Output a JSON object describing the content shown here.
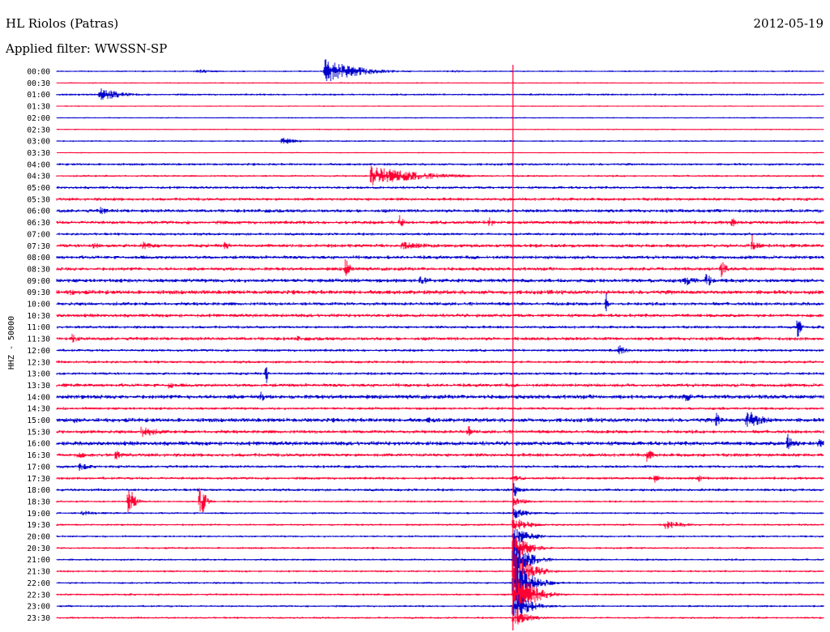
{
  "header": {
    "station": "HL Riolos (Patras)",
    "date": "2012-05-19",
    "filter": "Applied filter: WWSSN-SP"
  },
  "chart_data": {
    "type": "helicorder",
    "title": "HL Riolos (Patras)",
    "date": "2012-05-19",
    "filter": "WWSSN-SP",
    "ylabel": "HHZ - 50000",
    "row_minutes": 30,
    "trace_colors": [
      "#0000cc",
      "#ff0033"
    ],
    "tick_labels": [
      "00:00",
      "00:30",
      "01:00",
      "01:30",
      "02:00",
      "02:30",
      "03:00",
      "03:30",
      "04:00",
      "04:30",
      "05:00",
      "05:30",
      "06:00",
      "06:30",
      "07:00",
      "07:30",
      "08:00",
      "08:30",
      "09:00",
      "09:30",
      "10:00",
      "10:30",
      "11:00",
      "11:30",
      "12:00",
      "12:30",
      "13:00",
      "13:30",
      "14:00",
      "14:30",
      "15:00",
      "15:30",
      "16:00",
      "16:30",
      "17:00",
      "17:30",
      "18:00",
      "18:30",
      "19:00",
      "19:30",
      "20:00",
      "20:30",
      "21:00",
      "21:30",
      "22:00",
      "22:30",
      "23:00",
      "23:30"
    ],
    "row_noise_amplitude": [
      1.2,
      1,
      1.5,
      1,
      1,
      1,
      1.2,
      1,
      1.8,
      1.5,
      2,
      2.2,
      2.5,
      2.5,
      2,
      2.5,
      2.5,
      2.5,
      2.8,
      3,
      2.5,
      2.5,
      2,
      2.5,
      2,
      2,
      2,
      2.5,
      3,
      2,
      3,
      2.5,
      3,
      2.5,
      2,
      2,
      2,
      1.5,
      1.5,
      1.5,
      1.5,
      1.5,
      1.5,
      1.5,
      1.5,
      1.5,
      1.5,
      1.5
    ],
    "events": [
      {
        "row": 0,
        "minute": 10.5,
        "amp": 16,
        "dur": 1.2
      },
      {
        "row": 0,
        "minute": 5.5,
        "amp": 3,
        "dur": 0.8
      },
      {
        "row": 0,
        "minute": 15.5,
        "amp": 2,
        "dur": 0.8
      },
      {
        "row": 2,
        "minute": 1.7,
        "amp": 9,
        "dur": 0.8
      },
      {
        "row": 6,
        "minute": 8.8,
        "amp": 5,
        "dur": 0.6
      },
      {
        "row": 9,
        "minute": 12.3,
        "amp": 13,
        "dur": 1.8
      },
      {
        "row": 12,
        "minute": 1.7,
        "amp": 5,
        "dur": 0.5
      },
      {
        "row": 13,
        "minute": 13.4,
        "amp": 10,
        "dur": 0.2
      },
      {
        "row": 13,
        "minute": 16.9,
        "amp": 8,
        "dur": 0.2
      },
      {
        "row": 13,
        "minute": 26.4,
        "amp": 8,
        "dur": 0.2
      },
      {
        "row": 15,
        "minute": 1.4,
        "amp": 6,
        "dur": 0.3
      },
      {
        "row": 15,
        "minute": 3.3,
        "amp": 6,
        "dur": 0.6
      },
      {
        "row": 15,
        "minute": 6.5,
        "amp": 6,
        "dur": 0.4
      },
      {
        "row": 15,
        "minute": 13.5,
        "amp": 5,
        "dur": 1.5
      },
      {
        "row": 15,
        "minute": 27.2,
        "amp": 16,
        "dur": 0.2
      },
      {
        "row": 17,
        "minute": 11.3,
        "amp": 14,
        "dur": 0.2
      },
      {
        "row": 17,
        "minute": 26,
        "amp": 12,
        "dur": 0.2
      },
      {
        "row": 18,
        "minute": 14.2,
        "amp": 7,
        "dur": 0.5
      },
      {
        "row": 18,
        "minute": 24.6,
        "amp": 7,
        "dur": 0.5
      },
      {
        "row": 18,
        "minute": 25.4,
        "amp": 10,
        "dur": 0.3
      },
      {
        "row": 19,
        "minute": 0.5,
        "amp": 4,
        "dur": 0.8
      },
      {
        "row": 20,
        "minute": 21.5,
        "amp": 14,
        "dur": 0.1
      },
      {
        "row": 22,
        "minute": 15.9,
        "amp": 3,
        "dur": 0.3
      },
      {
        "row": 22,
        "minute": 29,
        "amp": 22,
        "dur": 0.1
      },
      {
        "row": 23,
        "minute": 0.6,
        "amp": 6,
        "dur": 0.3
      },
      {
        "row": 23,
        "minute": 9.4,
        "amp": 4,
        "dur": 0.3
      },
      {
        "row": 24,
        "minute": 22,
        "amp": 7,
        "dur": 0.3
      },
      {
        "row": 26,
        "minute": 8.2,
        "amp": 18,
        "dur": 0.05
      },
      {
        "row": 27,
        "minute": 4.4,
        "amp": 6,
        "dur": 0.2
      },
      {
        "row": 28,
        "minute": 8,
        "amp": 10,
        "dur": 0.1
      },
      {
        "row": 28,
        "minute": 24.6,
        "amp": 10,
        "dur": 0.2
      },
      {
        "row": 30,
        "minute": 0.7,
        "amp": 5,
        "dur": 0.2
      },
      {
        "row": 30,
        "minute": 14.5,
        "amp": 4,
        "dur": 0.8
      },
      {
        "row": 30,
        "minute": 25.8,
        "amp": 10,
        "dur": 0.2
      },
      {
        "row": 30,
        "minute": 27,
        "amp": 14,
        "dur": 0.6
      },
      {
        "row": 31,
        "minute": 3.3,
        "amp": 8,
        "dur": 0.7
      },
      {
        "row": 31,
        "minute": 16.1,
        "amp": 11,
        "dur": 0.1
      },
      {
        "row": 32,
        "minute": 28.6,
        "amp": 12,
        "dur": 0.3
      },
      {
        "row": 32,
        "minute": 29.8,
        "amp": 8,
        "dur": 0.3
      },
      {
        "row": 33,
        "minute": 0.8,
        "amp": 5,
        "dur": 0.5
      },
      {
        "row": 33,
        "minute": 2.3,
        "amp": 7,
        "dur": 0.3
      },
      {
        "row": 33,
        "minute": 23.1,
        "amp": 10,
        "dur": 0.2
      },
      {
        "row": 34,
        "minute": 0.9,
        "amp": 6,
        "dur": 0.4
      },
      {
        "row": 35,
        "minute": 23.4,
        "amp": 6,
        "dur": 0.2
      },
      {
        "row": 35,
        "minute": 25.1,
        "amp": 5,
        "dur": 0.3
      },
      {
        "row": 36,
        "minute": 17.9,
        "amp": 14,
        "dur": 0.1
      },
      {
        "row": 37,
        "minute": 2.8,
        "amp": 26,
        "dur": 0.2
      },
      {
        "row": 37,
        "minute": 5.6,
        "amp": 26,
        "dur": 0.2
      },
      {
        "row": 38,
        "minute": 1,
        "amp": 4,
        "dur": 0.6
      },
      {
        "row": 39,
        "minute": 23.8,
        "amp": 6,
        "dur": 0.8
      }
    ],
    "teleseism": {
      "minute": 17.85,
      "onset_row": 35,
      "peak_row": 45,
      "peak_amp": 40,
      "tail_minutes": 1.5
    }
  }
}
